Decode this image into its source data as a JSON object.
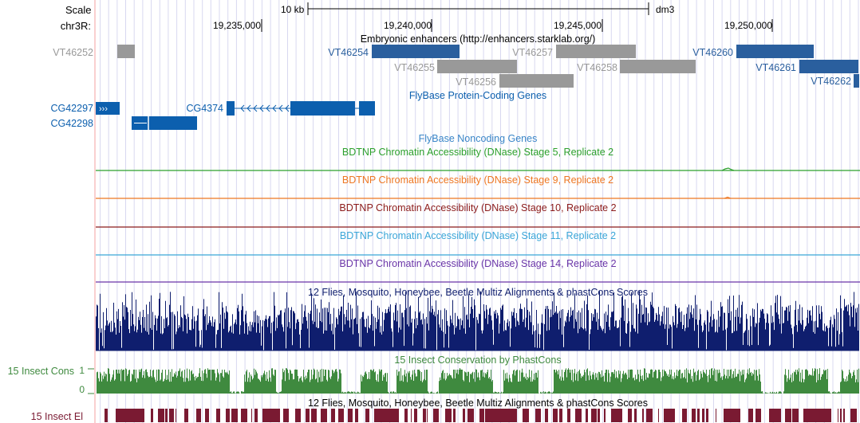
{
  "ruler": {
    "scale_label": "Scale",
    "scale_bar_label": "10 kb",
    "assembly": "dm3",
    "chrom_label": "chr3R:",
    "positions": [
      "19,235,000",
      "19,240,000",
      "19,245,000",
      "19,250,000"
    ]
  },
  "tracks": {
    "enhancers": {
      "title": "Embryonic enhancers (http://enhancers.starklab.org/)",
      "colors": {
        "active": "#2a5f9e",
        "inactive": "#999999"
      },
      "items": [
        {
          "label": "VT46252",
          "state": "inactive"
        },
        {
          "label": "VT46254",
          "state": "active"
        },
        {
          "label": "VT46255",
          "state": "inactive"
        },
        {
          "label": "VT46257",
          "state": "inactive"
        },
        {
          "label": "VT46256",
          "state": "inactive"
        },
        {
          "label": "VT46258",
          "state": "inactive"
        },
        {
          "label": "VT46260",
          "state": "active"
        },
        {
          "label": "VT46261",
          "state": "active"
        },
        {
          "label": "VT46262",
          "state": "active"
        }
      ]
    },
    "flybase_coding": {
      "title": "FlyBase Protein-Coding Genes",
      "color": "#0c5fae",
      "genes": [
        {
          "label": "CG42297",
          "strand": "+"
        },
        {
          "label": "CG42298",
          "strand": "+"
        },
        {
          "label": "CG4374",
          "strand": "-"
        }
      ]
    },
    "flybase_noncoding": {
      "title": "FlyBase Noncoding Genes",
      "color": "#3a86c8"
    },
    "dnase": [
      {
        "title": "BDTNP Chromatin Accessibility (DNase) Stage 5, Replicate 2",
        "color": "#2ca02c"
      },
      {
        "title": "BDTNP Chromatin Accessibility (DNase) Stage 9, Replicate 2",
        "color": "#ee7722"
      },
      {
        "title": "BDTNP Chromatin Accessibility (DNase) Stage 10, Replicate 2",
        "color": "#8b1a1a"
      },
      {
        "title": "BDTNP Chromatin Accessibility (DNase) Stage 11, Replicate 2",
        "color": "#3aa6d8"
      },
      {
        "title": "BDTNP Chromatin Accessibility (DNase) Stage 14, Replicate 2",
        "color": "#6a35a8"
      }
    ],
    "multiz": {
      "title": "12 Flies, Mosquito, Honeybee, Beetle Multiz Alignments & phastCons Scores",
      "color": "#0f1e6e"
    },
    "phastcons": {
      "title": "15 Insect Conservation by PhastCons",
      "side_label": "15 Insect Cons",
      "axis_max": "1",
      "axis_min": "0",
      "color": "#3f8a3f"
    },
    "elements": {
      "title": "12 Flies, Mosquito, Honeybee, Beetle Multiz Alignments & phastCons Scores",
      "side_label": "15 Insect El",
      "color": "#7a1a32"
    }
  }
}
